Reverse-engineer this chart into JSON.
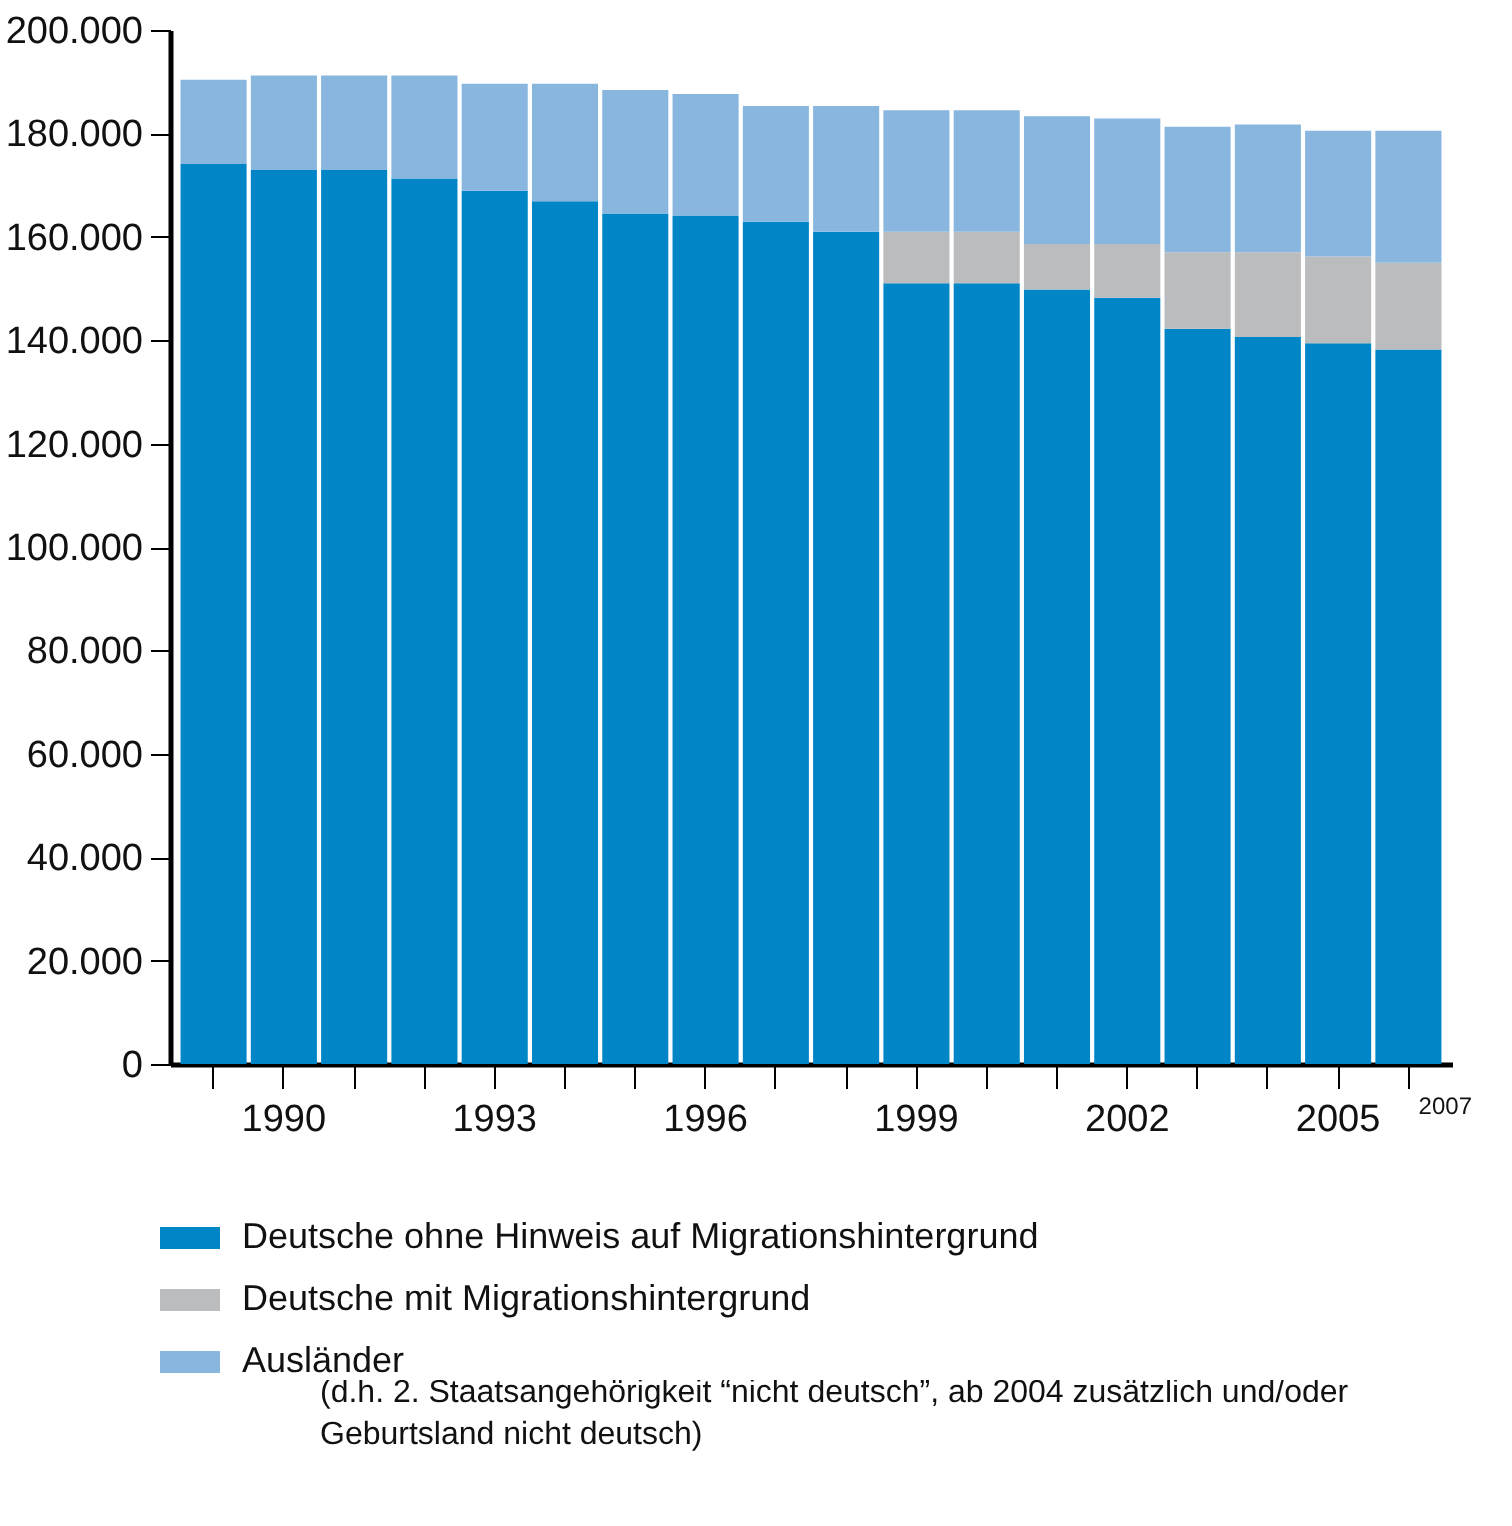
{
  "chart_data": {
    "type": "bar",
    "stacked": true,
    "categories": [
      null,
      "1990",
      null,
      null,
      "1993",
      null,
      null,
      "1996",
      null,
      null,
      "1999",
      null,
      null,
      "2002",
      null,
      null,
      "2005",
      null
    ],
    "series": [
      {
        "name": "Deutsche ohne Hinweis auf Migrationshintergrund",
        "color": "#0085c7",
        "values": [
          174100,
          172900,
          172900,
          171300,
          168900,
          166900,
          164500,
          164100,
          162900,
          161000,
          151000,
          151000,
          149800,
          148200,
          142200,
          140600,
          139400,
          138200
        ]
      },
      {
        "name": "Deutsche mit Migrationshintergrund",
        "color": "#bbbcbe",
        "values": [
          null,
          null,
          null,
          null,
          null,
          null,
          null,
          null,
          null,
          null,
          10000,
          10000,
          8800,
          10400,
          14800,
          16400,
          16800,
          16800
        ]
      },
      {
        "name": "Ausländer",
        "color": "#88b6df",
        "values": [
          16300,
          18300,
          18300,
          19900,
          20700,
          22700,
          23900,
          23500,
          22400,
          24300,
          23500,
          23500,
          24700,
          24300,
          24300,
          24700,
          24300,
          25500
        ]
      }
    ],
    "ylim": [
      0,
      200000
    ],
    "yticks": [
      0,
      {
        "value": 20000,
        "label": "20.000"
      },
      {
        "value": 40000,
        "label": "40.000"
      },
      {
        "value": 60000,
        "label": "60.000"
      },
      {
        "value": 80000,
        "label": "80.000"
      },
      {
        "value": 100000,
        "label": "100.000"
      },
      {
        "value": 120000,
        "label": "120.000"
      },
      {
        "value": 140000,
        "label": "140.000"
      },
      {
        "value": 160000,
        "label": "160.000"
      },
      {
        "value": 180000,
        "label": "180.000"
      },
      {
        "value": 200000,
        "label": "200.000"
      }
    ],
    "legend": "bottom",
    "annotations": [
      "2007",
      "(d.h. 2. Staatsangehörigkeit “nicht deutsch”, ab 2004 zusätzlich und/oder Geburtsland nicht deutsch)"
    ]
  }
}
